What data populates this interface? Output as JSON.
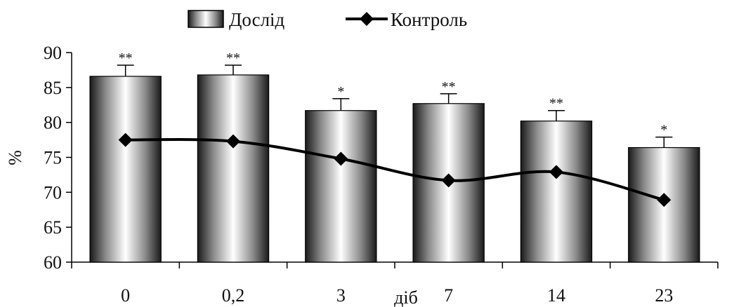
{
  "chart_data": {
    "type": "bar",
    "categories": [
      "0",
      "0,2",
      "3",
      "7",
      "14",
      "23"
    ],
    "series": [
      {
        "name": "Дослід",
        "kind": "bar",
        "values": [
          86.6,
          86.8,
          81.7,
          82.7,
          80.2,
          76.4
        ],
        "errors": [
          1.6,
          1.4,
          1.7,
          1.4,
          1.5,
          1.5
        ],
        "annotations": [
          "**",
          "**",
          "*",
          "**",
          "**",
          "*"
        ]
      },
      {
        "name": "Контроль",
        "kind": "line",
        "values": [
          77.5,
          77.3,
          74.8,
          71.7,
          72.9,
          68.9
        ]
      }
    ],
    "ylabel": "%",
    "xlabel": "діб",
    "ylim": [
      60,
      90
    ],
    "yticks": [
      60,
      65,
      70,
      75,
      80,
      85,
      90
    ],
    "legend_position": "top",
    "grid": false
  }
}
